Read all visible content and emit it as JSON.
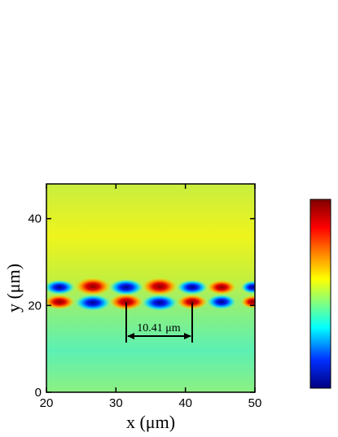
{
  "chart_data": {
    "type": "heatmap",
    "xlabel": "x (μm)",
    "ylabel": "y (μm)",
    "xlim": [
      20,
      50
    ],
    "xticks": [
      20,
      30,
      40,
      50
    ],
    "ylim": [
      0,
      48
    ],
    "yticks": [
      0,
      20,
      40
    ],
    "annotation": "10.41 μm"
  }
}
